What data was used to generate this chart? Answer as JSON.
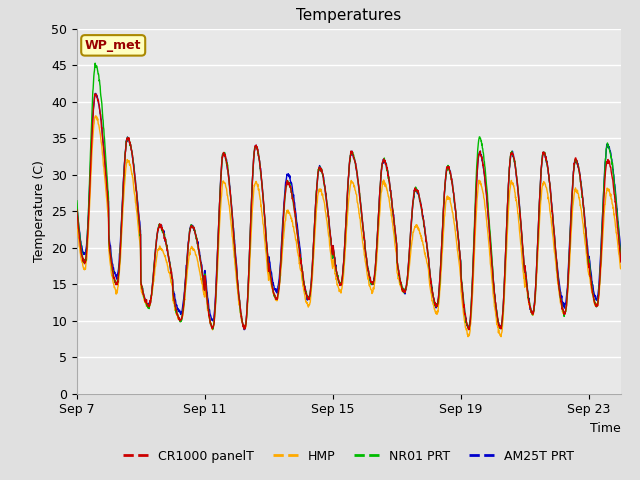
{
  "title": "Temperatures",
  "xlabel": "Time",
  "ylabel": "Temperature (C)",
  "ylim": [
    0,
    50
  ],
  "xlim_days": [
    0,
    17
  ],
  "x_tick_positions": [
    0,
    4,
    8,
    12,
    16
  ],
  "x_tick_labels": [
    "Sep 7",
    "Sep 11",
    "Sep 15",
    "Sep 19",
    "Sep 23"
  ],
  "annotation_text": "WP_met",
  "series_colors": {
    "CR1000 panelT": "#cc0000",
    "HMP": "#ffaa00",
    "NR01 PRT": "#00bb00",
    "AM25T PRT": "#0000cc"
  },
  "bg_color": "#e8e8e8",
  "fig_bg_color": "#e0e0e0",
  "grid_color": "#ffffff",
  "title_fontsize": 11,
  "axis_fontsize": 9,
  "tick_fontsize": 9,
  "yticks": [
    0,
    5,
    10,
    15,
    20,
    25,
    30,
    35,
    40,
    45,
    50
  ],
  "day_maxes": [
    41,
    35,
    23,
    23,
    33,
    34,
    29,
    31,
    33,
    32,
    28,
    31,
    33,
    33,
    33,
    32,
    32
  ],
  "day_mins": [
    18,
    15,
    12,
    10,
    9,
    9,
    13,
    13,
    15,
    15,
    14,
    12,
    9,
    9,
    11,
    11,
    12
  ],
  "nr01_day_maxes": [
    45,
    35,
    23,
    23,
    33,
    34,
    29,
    31,
    33,
    32,
    28,
    31,
    35,
    33,
    33,
    32,
    34
  ],
  "hmp_day_maxes": [
    38,
    32,
    20,
    20,
    29,
    29,
    25,
    28,
    29,
    29,
    23,
    27,
    29,
    29,
    29,
    28,
    28
  ],
  "hmp_day_mins": [
    17,
    14,
    12,
    10,
    9,
    9,
    13,
    12,
    14,
    14,
    14,
    11,
    8,
    8,
    11,
    11,
    12
  ],
  "am25t_day_maxes": [
    41,
    35,
    23,
    23,
    33,
    34,
    30,
    31,
    33,
    32,
    28,
    31,
    33,
    33,
    33,
    32,
    34
  ],
  "am25t_day_mins": [
    19,
    16,
    12,
    11,
    10,
    9,
    14,
    13,
    15,
    15,
    14,
    12,
    9,
    9,
    11,
    12,
    13
  ]
}
